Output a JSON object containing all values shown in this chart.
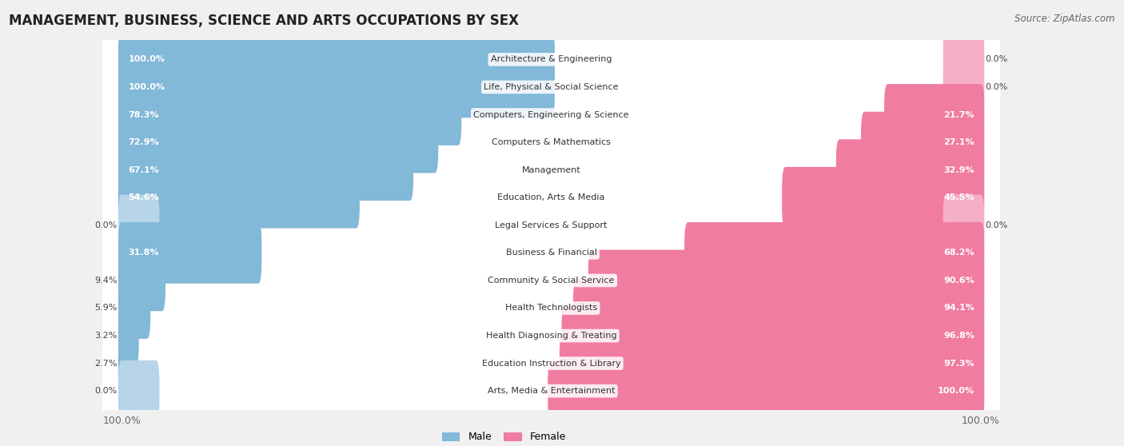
{
  "title": "MANAGEMENT, BUSINESS, SCIENCE AND ARTS OCCUPATIONS BY SEX",
  "source": "Source: ZipAtlas.com",
  "categories": [
    "Architecture & Engineering",
    "Life, Physical & Social Science",
    "Computers, Engineering & Science",
    "Computers & Mathematics",
    "Management",
    "Education, Arts & Media",
    "Legal Services & Support",
    "Business & Financial",
    "Community & Social Service",
    "Health Technologists",
    "Health Diagnosing & Treating",
    "Education Instruction & Library",
    "Arts, Media & Entertainment"
  ],
  "male": [
    100.0,
    100.0,
    78.3,
    72.9,
    67.1,
    54.6,
    0.0,
    31.8,
    9.4,
    5.9,
    3.2,
    2.7,
    0.0
  ],
  "female": [
    0.0,
    0.0,
    21.7,
    27.1,
    32.9,
    45.5,
    0.0,
    68.2,
    90.6,
    94.1,
    96.8,
    97.3,
    100.0
  ],
  "male_color": "#82b8d8",
  "female_color": "#f07ca0",
  "male_color_light": "#b8d4e8",
  "female_color_light": "#f5b0c8",
  "male_label": "Male",
  "female_label": "Female",
  "bg_color": "#f0f0f0",
  "bar_bg_color": "#ffffff",
  "title_fontsize": 12,
  "source_fontsize": 8.5,
  "label_fontsize": 8,
  "pct_fontsize": 8,
  "legend_fontsize": 9,
  "zero_bar_width": 8.0,
  "label_threshold": 20.0
}
